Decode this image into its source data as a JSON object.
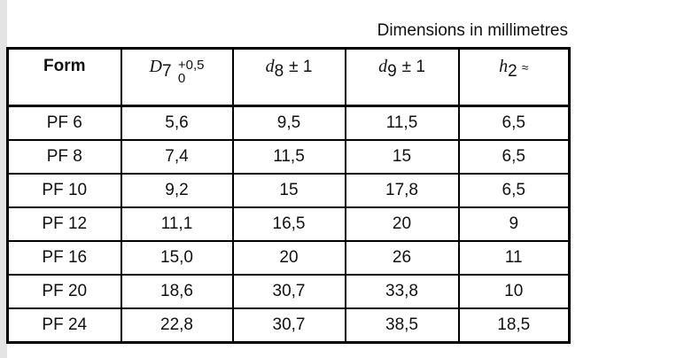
{
  "caption": "Dimensions in millimetres",
  "headers": {
    "form": "Form",
    "d7": {
      "symbol": "D",
      "sub": "7",
      "upper": "+0,5",
      "lower": "0"
    },
    "d8": {
      "symbol": "d",
      "sub": "8",
      "tolerance": "± 1"
    },
    "d9": {
      "symbol": "d",
      "sub": "9",
      "tolerance": "± 1"
    },
    "h2": {
      "symbol": "h",
      "sub": "2",
      "tolerance": "≈"
    }
  },
  "rows": [
    [
      "PF 6",
      "5,6",
      "9,5",
      "11,5",
      "6,5"
    ],
    [
      "PF 8",
      "7,4",
      "11,5",
      "15",
      "6,5"
    ],
    [
      "PF 10",
      "9,2",
      "15",
      "17,8",
      "6,5"
    ],
    [
      "PF 12",
      "11,1",
      "16,5",
      "20",
      "9"
    ],
    [
      "PF 16",
      "15,0",
      "20",
      "26",
      "11"
    ],
    [
      "PF 20",
      "18,6",
      "30,7",
      "33,8",
      "10"
    ],
    [
      "PF 24",
      "22,8",
      "30,7",
      "38,5",
      "18,5"
    ]
  ]
}
